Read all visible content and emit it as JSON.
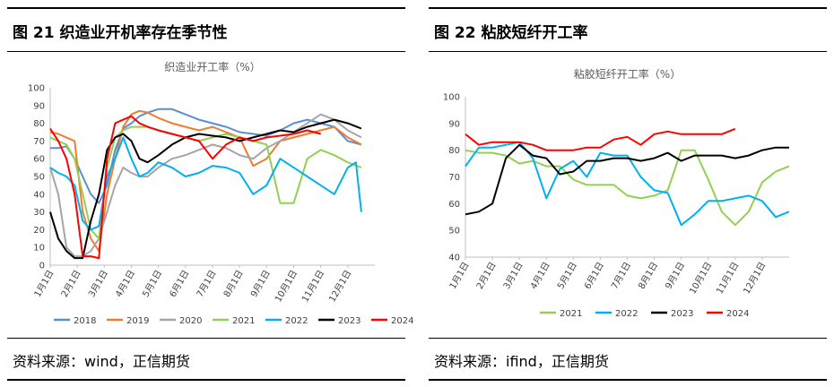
{
  "left": {
    "heading": "图 21  织造业开机率存在季节性",
    "source": "资料来源：wind，正信期货"
  },
  "right": {
    "heading": "图 22    粘胶短纤开工率",
    "source": "资料来源：ifind，正信期货"
  },
  "chart_data": [
    {
      "type": "line",
      "title": "织造业开工率（%）",
      "xlabel": "",
      "ylabel": "",
      "ylim": [
        0,
        100
      ],
      "y_ticks": [
        "0",
        "10",
        "20",
        "30",
        "40",
        "50",
        "60",
        "70",
        "80",
        "90",
        "100"
      ],
      "categories": [
        "1月1日",
        "2月1日",
        "3月1日",
        "4月1日",
        "5月1日",
        "6月1日",
        "7月1日",
        "8月1日",
        "9月1日",
        "10月1日",
        "11月1日",
        "12月1日"
      ],
      "grid": false,
      "legend": "bottom",
      "series": [
        {
          "name": "2018",
          "color": "#5b8fd0",
          "x": [
            0,
            0.3,
            0.6,
            0.9,
            1.2,
            1.5,
            1.8,
            2.1,
            2.4,
            2.7,
            3.0,
            3.3,
            3.6,
            4.0,
            4.5,
            5.0,
            5.5,
            6.0,
            6.5,
            7.0,
            7.5,
            8.0,
            8.5,
            9.0,
            9.5,
            10.0,
            10.5,
            11.0,
            11.5
          ],
          "values": [
            66,
            66,
            67,
            60,
            50,
            40,
            35,
            45,
            65,
            77,
            80,
            84,
            86,
            88,
            88,
            85,
            82,
            80,
            78,
            75,
            74,
            73,
            76,
            80,
            82,
            80,
            78,
            70,
            68
          ]
        },
        {
          "name": "2019",
          "color": "#ed7d31",
          "x": [
            0,
            0.3,
            0.6,
            0.9,
            1.2,
            1.5,
            1.8,
            2.1,
            2.4,
            2.7,
            3.0,
            3.3,
            3.6,
            4.0,
            4.5,
            5.0,
            5.5,
            6.0,
            6.5,
            7.0,
            7.5,
            8.0,
            8.5,
            9.0,
            9.5,
            10.0,
            10.5,
            11.0,
            11.5
          ],
          "values": [
            75,
            74,
            72,
            70,
            30,
            15,
            8,
            40,
            60,
            78,
            85,
            87,
            86,
            83,
            80,
            78,
            76,
            78,
            75,
            72,
            56,
            60,
            70,
            72,
            74,
            76,
            78,
            72,
            68
          ]
        },
        {
          "name": "2020",
          "color": "#a5a5a5",
          "x": [
            0,
            0.3,
            0.6,
            0.9,
            1.2,
            1.5,
            1.8,
            2.1,
            2.4,
            2.7,
            3.0,
            3.3,
            3.6,
            4.0,
            4.5,
            5.0,
            5.5,
            6.0,
            6.5,
            7.0,
            7.5,
            8.0,
            8.5,
            9.0,
            9.5,
            10.0,
            10.5,
            11.0,
            11.5
          ],
          "values": [
            55,
            40,
            10,
            5,
            5,
            8,
            15,
            30,
            45,
            55,
            52,
            50,
            50,
            55,
            60,
            62,
            65,
            68,
            66,
            62,
            60,
            66,
            70,
            75,
            80,
            85,
            82,
            76,
            72
          ]
        },
        {
          "name": "2021",
          "color": "#92d050",
          "x": [
            0,
            0.3,
            0.6,
            0.9,
            1.2,
            1.5,
            1.8,
            2.1,
            2.4,
            2.7,
            3.0,
            3.3,
            3.6,
            4.0,
            4.5,
            5.0,
            5.5,
            6.0,
            6.5,
            7.0,
            7.5,
            8.0,
            8.5,
            9.0,
            9.5,
            10.0,
            10.5,
            11.0,
            11.5
          ],
          "values": [
            72,
            70,
            68,
            60,
            40,
            20,
            15,
            55,
            72,
            76,
            78,
            78,
            78,
            76,
            74,
            72,
            70,
            72,
            74,
            72,
            70,
            68,
            35,
            35,
            60,
            65,
            62,
            58,
            55
          ]
        },
        {
          "name": "2022",
          "color": "#00b0f0",
          "x": [
            0,
            0.3,
            0.6,
            0.9,
            1.2,
            1.5,
            1.8,
            2.1,
            2.4,
            2.7,
            3.0,
            3.3,
            3.6,
            4.0,
            4.5,
            5.0,
            5.5,
            6.0,
            6.5,
            7.0,
            7.5,
            8.0,
            8.5,
            9.0,
            9.5,
            10.0,
            10.5,
            11.0,
            11.3,
            11.5
          ],
          "values": [
            55,
            52,
            50,
            45,
            25,
            20,
            22,
            50,
            60,
            72,
            60,
            50,
            52,
            58,
            55,
            50,
            52,
            56,
            55,
            52,
            40,
            45,
            60,
            55,
            50,
            45,
            40,
            55,
            58,
            30
          ]
        },
        {
          "name": "2023",
          "color": "#000000",
          "x": [
            0,
            0.3,
            0.6,
            0.9,
            1.2,
            1.5,
            1.8,
            2.1,
            2.4,
            2.7,
            3.0,
            3.3,
            3.6,
            4.0,
            4.5,
            5.0,
            5.5,
            6.0,
            6.5,
            7.0,
            7.5,
            8.0,
            8.5,
            9.0,
            9.5,
            10.0,
            10.5,
            11.0,
            11.5
          ],
          "values": [
            30,
            15,
            8,
            4,
            4,
            25,
            40,
            65,
            72,
            74,
            70,
            60,
            58,
            62,
            68,
            72,
            74,
            73,
            72,
            70,
            72,
            74,
            76,
            75,
            78,
            80,
            82,
            80,
            77
          ]
        },
        {
          "name": "2024",
          "color": "#ff0000",
          "x": [
            0,
            0.3,
            0.6,
            0.9,
            1.2,
            1.5,
            1.8,
            2.1,
            2.4,
            2.7,
            3.0,
            3.3,
            3.6,
            4.0,
            4.5,
            5.0,
            5.5,
            6.0,
            6.5,
            7.0,
            7.5,
            8.0,
            8.5,
            9.0,
            9.5,
            10.0
          ],
          "values": [
            77,
            70,
            60,
            40,
            5,
            5,
            4,
            60,
            80,
            82,
            84,
            80,
            78,
            76,
            74,
            72,
            70,
            60,
            68,
            72,
            70,
            72,
            73,
            74,
            76,
            74
          ]
        }
      ]
    },
    {
      "type": "line",
      "title": "粘胶短纤开工率（%）",
      "xlabel": "",
      "ylabel": "",
      "ylim": [
        40,
        100
      ],
      "y_ticks": [
        "40",
        "50",
        "60",
        "70",
        "80",
        "90",
        "100"
      ],
      "categories": [
        "1月1日",
        "2月1日",
        "3月1日",
        "4月1日",
        "5月1日",
        "6月1日",
        "7月1日",
        "8月1日",
        "9月1日",
        "10月1日",
        "11月1日",
        "12月1日"
      ],
      "grid": false,
      "legend": "bottom",
      "series": [
        {
          "name": "2021",
          "color": "#92d050",
          "x": [
            0,
            0.5,
            1.0,
            1.5,
            2.0,
            2.5,
            3.0,
            3.5,
            4.0,
            4.5,
            5.0,
            5.5,
            6.0,
            6.5,
            7.0,
            7.5,
            8.0,
            8.5,
            9.0,
            9.5,
            10.0,
            10.5,
            11.0,
            11.5,
            12.0
          ],
          "values": [
            80,
            79,
            79,
            78,
            75,
            76,
            74,
            74,
            69,
            67,
            67,
            67,
            63,
            62,
            63,
            65,
            80,
            80,
            69,
            57,
            52,
            57,
            68,
            72,
            74
          ]
        },
        {
          "name": "2022",
          "color": "#00b0f0",
          "x": [
            0,
            0.5,
            1.0,
            1.5,
            2.0,
            2.5,
            3.0,
            3.5,
            4.0,
            4.5,
            5.0,
            5.5,
            6.0,
            6.5,
            7.0,
            7.5,
            8.0,
            8.5,
            9.0,
            9.5,
            10.0,
            10.5,
            11.0,
            11.5,
            12.0
          ],
          "values": [
            74,
            81,
            81,
            82,
            83,
            77,
            62,
            73,
            76,
            70,
            79,
            78,
            78,
            70,
            65,
            64,
            52,
            56,
            61,
            61,
            62,
            63,
            61,
            55,
            57
          ]
        },
        {
          "name": "2023",
          "color": "#000000",
          "x": [
            0,
            0.5,
            1.0,
            1.5,
            2.0,
            2.5,
            3.0,
            3.5,
            4.0,
            4.5,
            5.0,
            5.5,
            6.0,
            6.5,
            7.0,
            7.5,
            8.0,
            8.5,
            9.0,
            9.5,
            10.0,
            10.5,
            11.0,
            11.5,
            12.0
          ],
          "values": [
            56,
            57,
            60,
            77,
            82,
            78,
            77,
            71,
            72,
            76,
            76,
            77,
            77,
            76,
            77,
            79,
            76,
            78,
            78,
            78,
            77,
            78,
            80,
            81,
            81
          ]
        },
        {
          "name": "2024",
          "color": "#ff0000",
          "x": [
            0,
            0.5,
            1.0,
            1.5,
            2.0,
            2.5,
            3.0,
            3.5,
            4.0,
            4.5,
            5.0,
            5.5,
            6.0,
            6.5,
            7.0,
            7.5,
            8.0,
            8.5,
            9.0,
            9.5,
            10.0
          ],
          "values": [
            86,
            82,
            83,
            83,
            83,
            82,
            80,
            80,
            80,
            81,
            81,
            84,
            85,
            82,
            86,
            87,
            86,
            86,
            86,
            86,
            88
          ]
        }
      ]
    }
  ]
}
